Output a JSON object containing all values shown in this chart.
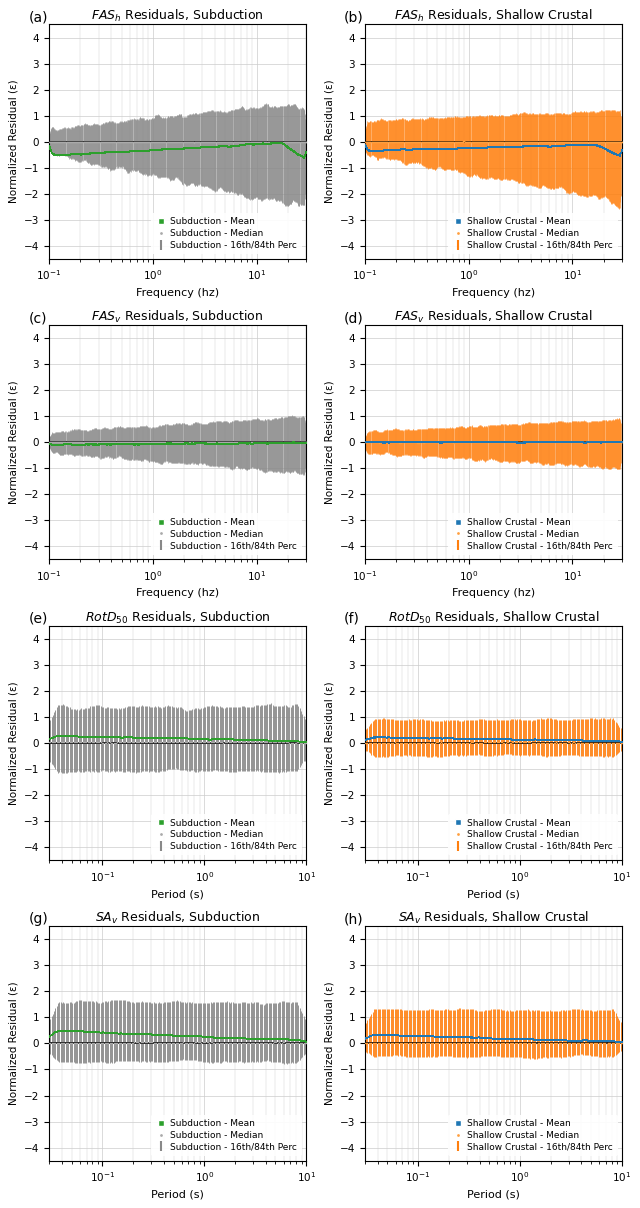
{
  "panels": [
    {
      "label": "a",
      "title_italic": "FAS",
      "title_sub": "h",
      "title_post": " Residuals, Subduction",
      "type": "frequency",
      "regime": "subduction",
      "xlabel": "Frequency (hz)",
      "color_fill": "#888888",
      "color_median": "#aaaaaa",
      "color_mean": "#2ca02c",
      "ylim": [
        -4.5,
        4.5
      ],
      "yticks": [
        -4,
        -3,
        -2,
        -1,
        0,
        1,
        2,
        3,
        4
      ]
    },
    {
      "label": "b",
      "title_italic": "FAS",
      "title_sub": "h",
      "title_post": " Residuals, Shallow Crustal",
      "type": "frequency",
      "regime": "shallow",
      "xlabel": "Frequency (hz)",
      "color_fill": "#ff7f0e",
      "color_median": "#ff9f3e",
      "color_mean": "#1f77b4",
      "ylim": [
        -4.5,
        4.5
      ],
      "yticks": [
        -4,
        -3,
        -2,
        -1,
        0,
        1,
        2,
        3,
        4
      ]
    },
    {
      "label": "c",
      "title_italic": "FAS",
      "title_sub": "v",
      "title_post": " Residuals, Subduction",
      "type": "frequency",
      "regime": "subduction",
      "xlabel": "Frequency (hz)",
      "color_fill": "#888888",
      "color_median": "#aaaaaa",
      "color_mean": "#2ca02c",
      "ylim": [
        -4.5,
        4.5
      ],
      "yticks": [
        -4,
        -3,
        -2,
        -1,
        0,
        1,
        2,
        3,
        4
      ]
    },
    {
      "label": "d",
      "title_italic": "FAS",
      "title_sub": "v",
      "title_post": " Residuals, Shallow Crustal",
      "type": "frequency",
      "regime": "shallow",
      "xlabel": "Frequency (hz)",
      "color_fill": "#ff7f0e",
      "color_median": "#ff9f3e",
      "color_mean": "#1f77b4",
      "ylim": [
        -4.5,
        4.5
      ],
      "yticks": [
        -4,
        -3,
        -2,
        -1,
        0,
        1,
        2,
        3,
        4
      ]
    },
    {
      "label": "e",
      "title_italic": "RotD",
      "title_sub": "50",
      "title_post": " Residuals, Subduction",
      "type": "period",
      "regime": "subduction",
      "xlabel": "Period (s)",
      "color_fill": "#888888",
      "color_median": "#aaaaaa",
      "color_mean": "#2ca02c",
      "ylim": [
        -4.5,
        4.5
      ],
      "yticks": [
        -4,
        -3,
        -2,
        -1,
        0,
        1,
        2,
        3,
        4
      ]
    },
    {
      "label": "f",
      "title_italic": "RotD",
      "title_sub": "50",
      "title_post": " Residuals, Shallow Crustal",
      "type": "period",
      "regime": "shallow",
      "xlabel": "Period (s)",
      "color_fill": "#ff7f0e",
      "color_median": "#ff9f3e",
      "color_mean": "#1f77b4",
      "ylim": [
        -4.5,
        4.5
      ],
      "yticks": [
        -4,
        -3,
        -2,
        -1,
        0,
        1,
        2,
        3,
        4
      ]
    },
    {
      "label": "g",
      "title_italic": "SA",
      "title_sub": "v",
      "title_post": " Residuals, Subduction",
      "type": "period",
      "regime": "subduction",
      "xlabel": "Period (s)",
      "color_fill": "#888888",
      "color_median": "#aaaaaa",
      "color_mean": "#2ca02c",
      "ylim": [
        -4.5,
        4.5
      ],
      "yticks": [
        -4,
        -3,
        -2,
        -1,
        0,
        1,
        2,
        3,
        4
      ]
    },
    {
      "label": "h",
      "title_italic": "SA",
      "title_sub": "v",
      "title_post": " Residuals, Shallow Crustal",
      "type": "period",
      "regime": "shallow",
      "xlabel": "Period (s)",
      "color_fill": "#ff7f0e",
      "color_median": "#ff9f3e",
      "color_mean": "#1f77b4",
      "ylim": [
        -4.5,
        4.5
      ],
      "yticks": [
        -4,
        -3,
        -2,
        -1,
        0,
        1,
        2,
        3,
        4
      ]
    }
  ],
  "subduction_legend": [
    "Subduction - Mean",
    "Subduction - Median",
    "Subduction - 16th/84th Perc"
  ],
  "shallow_legend": [
    "Shallow Crustal - Mean",
    "Shallow Crustal - Median",
    "Shallow Crustal - 16th/84th Perc"
  ],
  "ylabel": "Normalized Residual (ε)",
  "background_color": "#ffffff",
  "grid_color": "#cccccc"
}
